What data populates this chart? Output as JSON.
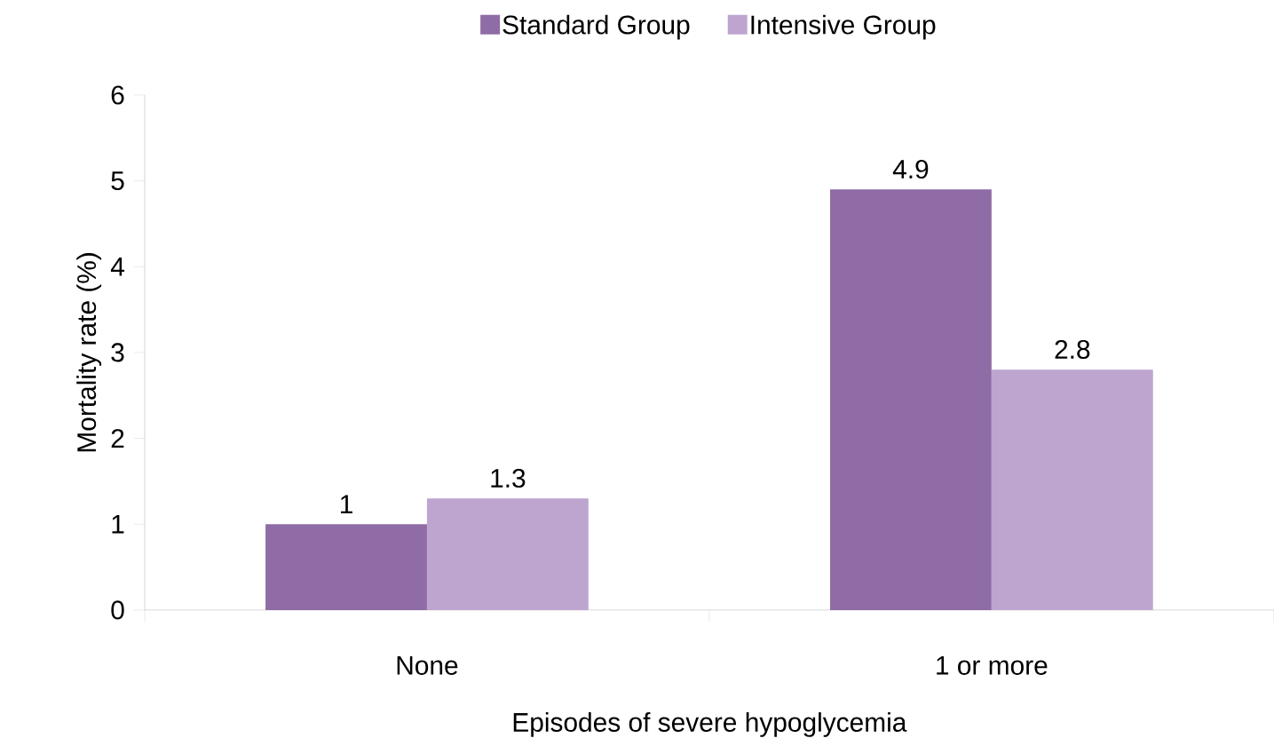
{
  "chart_data": {
    "type": "bar",
    "xlabel": "Episodes of severe hypoglycemia",
    "ylabel": "Mortality rate (%)",
    "categories": [
      "None",
      "1 or more"
    ],
    "series": [
      {
        "name": "Standard Group",
        "color": "#8f6ca5",
        "values": [
          1,
          4.9
        ]
      },
      {
        "name": "Intensive Group",
        "color": "#bea5cf",
        "values": [
          1.3,
          2.8
        ]
      }
    ],
    "ylim": [
      0,
      6
    ],
    "yticks": [
      0,
      1,
      2,
      3,
      4,
      5,
      6
    ],
    "grid": false,
    "legend": "top",
    "data_labels": true
  }
}
